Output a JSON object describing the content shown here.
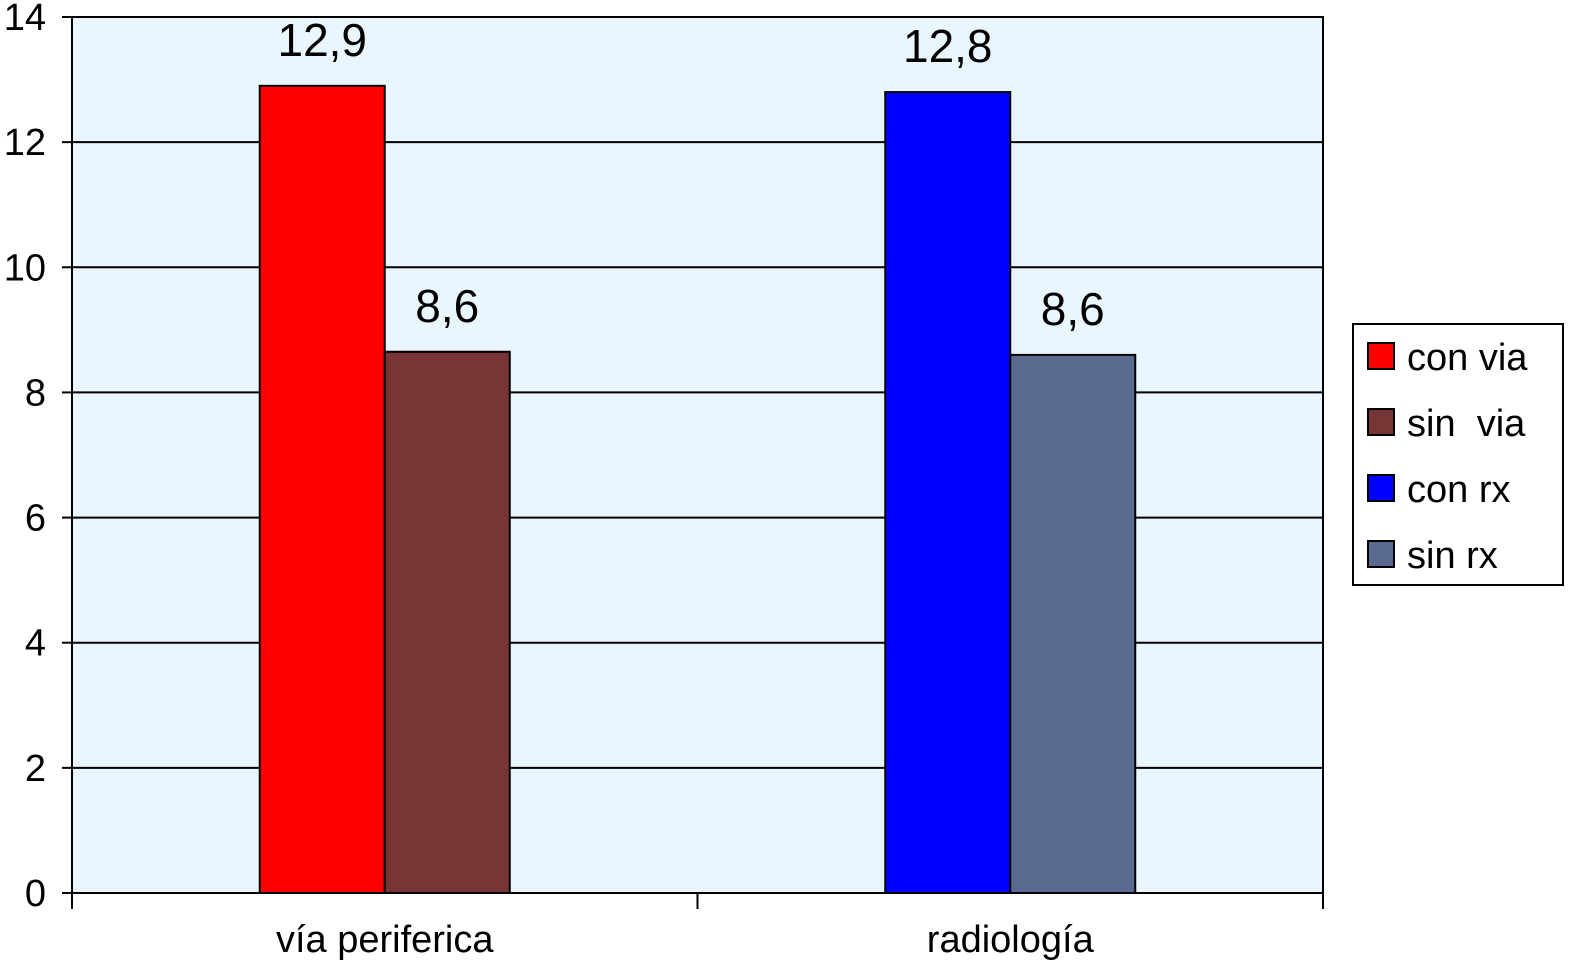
{
  "chart_data": {
    "type": "bar",
    "title": "",
    "xlabel": "",
    "ylabel": "",
    "ylim": [
      0,
      14
    ],
    "yticks": [
      0,
      2,
      4,
      6,
      8,
      10,
      12,
      14
    ],
    "grid": true,
    "legend_position": "right",
    "categories": [
      "vía periferica",
      "radiología"
    ],
    "bars": [
      {
        "series": "con via",
        "category": "vía periferica",
        "value": 12.9,
        "label": "12,9",
        "color": "#ff0000"
      },
      {
        "series": "sin  via",
        "category": "vía periferica",
        "value": 8.65,
        "label": "8,6",
        "color": "#773535"
      },
      {
        "series": "con rx",
        "category": "radiología",
        "value": 12.8,
        "label": "12,8",
        "color": "#0000ff"
      },
      {
        "series": "sin rx",
        "category": "radiología",
        "value": 8.6,
        "label": "8,6",
        "color": "#5a6a90"
      }
    ],
    "legend": [
      {
        "label": "con via",
        "color": "#ff0000"
      },
      {
        "label": "sin  via",
        "color": "#773535"
      },
      {
        "label": "con rx",
        "color": "#0000ff"
      },
      {
        "label": "sin rx",
        "color": "#5a6a90"
      }
    ],
    "colors": {
      "plot_background": "#eaf6fd",
      "gridline": "#000000",
      "axis": "#000000"
    }
  }
}
